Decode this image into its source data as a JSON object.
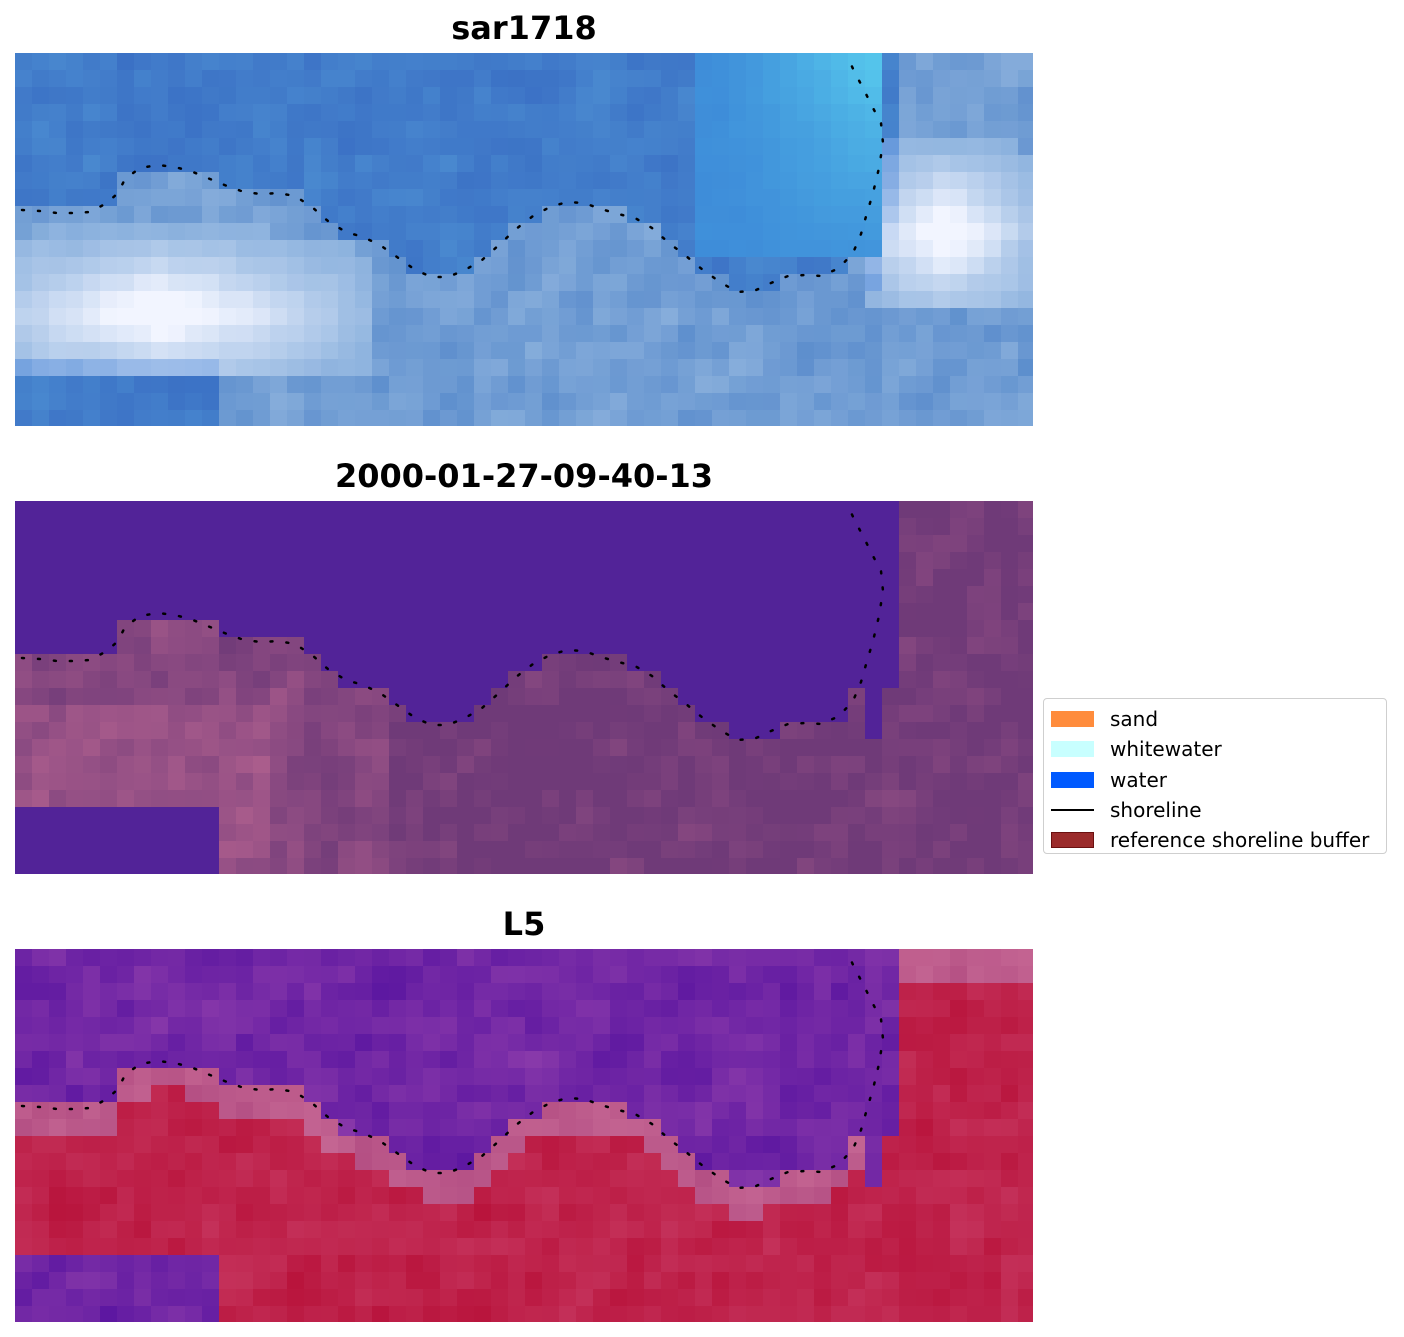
{
  "panels": [
    {
      "title": "sar1718",
      "style": "rgb-composite"
    },
    {
      "title": "2000-01-27-09-40-13",
      "style": "classification"
    },
    {
      "title": "L5",
      "style": "index"
    }
  ],
  "legend": {
    "items": [
      {
        "label": "sand",
        "color": "#ff8c3c",
        "kind": "patch"
      },
      {
        "label": "whitewater",
        "color": "#c8ffff",
        "kind": "patch"
      },
      {
        "label": "water",
        "color": "#005aff",
        "kind": "patch"
      },
      {
        "label": "shoreline",
        "color": "#000000",
        "kind": "line"
      },
      {
        "label": "reference shoreline buffer",
        "color": "#9b2b2b",
        "kind": "patch-outlined"
      }
    ]
  },
  "colors": {
    "water_class": "#522398",
    "land_class": "#7a3c7e",
    "index_water": "#6a1b9a",
    "index_land": "#c0143c",
    "rgb_base": "#3f7bc8",
    "rgb_bright": "#f2f5ff"
  }
}
